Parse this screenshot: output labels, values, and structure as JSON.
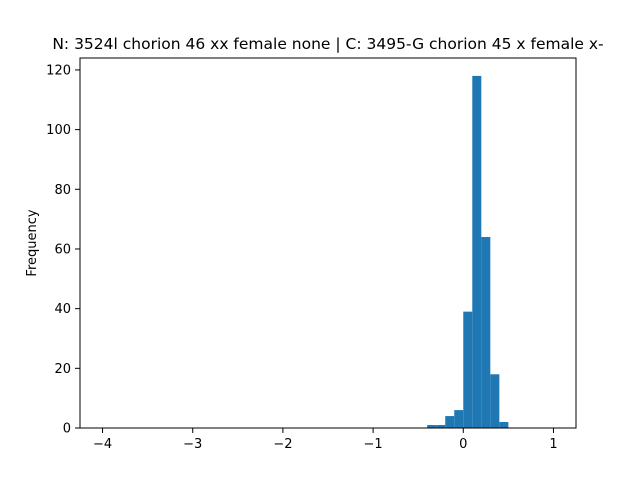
{
  "chart_data": {
    "type": "bar",
    "title": "N: 3524l chorion 46 xx female none | C: 3495-G chorion 45 x female x-",
    "xlabel": "",
    "ylabel": "Frequency",
    "xlim": [
      -4.25,
      1.25
    ],
    "ylim": [
      0,
      124
    ],
    "xticks": [
      -4,
      -3,
      -2,
      -1,
      0,
      1
    ],
    "xtick_labels": [
      "−4",
      "−3",
      "−2",
      "−1",
      "0",
      "1"
    ],
    "yticks": [
      0,
      20,
      40,
      60,
      80,
      100,
      120
    ],
    "ytick_labels": [
      "0",
      "20",
      "40",
      "60",
      "80",
      "100",
      "120"
    ],
    "grid": false,
    "bar_color": "#1f77b4",
    "bins": [
      {
        "start": -0.4,
        "end": -0.3,
        "count": 1
      },
      {
        "start": -0.3,
        "end": -0.2,
        "count": 1
      },
      {
        "start": -0.2,
        "end": -0.1,
        "count": 4
      },
      {
        "start": -0.1,
        "end": 0.0,
        "count": 6
      },
      {
        "start": 0.0,
        "end": 0.1,
        "count": 39
      },
      {
        "start": 0.1,
        "end": 0.2,
        "count": 118
      },
      {
        "start": 0.2,
        "end": 0.3,
        "count": 64
      },
      {
        "start": 0.3,
        "end": 0.4,
        "count": 18
      },
      {
        "start": 0.4,
        "end": 0.5,
        "count": 2
      }
    ]
  }
}
